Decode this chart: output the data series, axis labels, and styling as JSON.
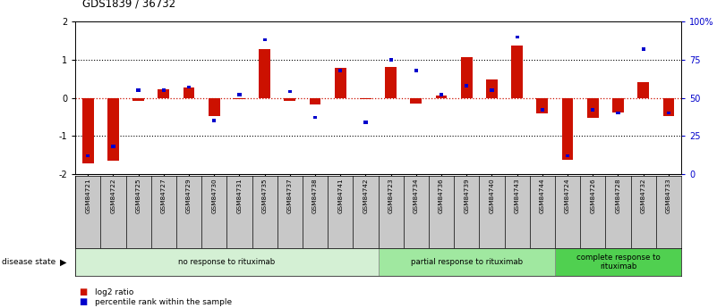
{
  "title": "GDS1839 / 36732",
  "samples": [
    "GSM84721",
    "GSM84722",
    "GSM84725",
    "GSM84727",
    "GSM84729",
    "GSM84730",
    "GSM84731",
    "GSM84735",
    "GSM84737",
    "GSM84738",
    "GSM84741",
    "GSM84742",
    "GSM84723",
    "GSM84734",
    "GSM84736",
    "GSM84739",
    "GSM84740",
    "GSM84743",
    "GSM84744",
    "GSM84724",
    "GSM84726",
    "GSM84728",
    "GSM84732",
    "GSM84733"
  ],
  "log2_ratio": [
    -1.72,
    -1.65,
    -0.08,
    0.22,
    0.28,
    -0.48,
    -0.04,
    1.28,
    -0.08,
    -0.18,
    0.78,
    -0.04,
    0.82,
    -0.14,
    0.06,
    1.06,
    0.48,
    1.38,
    -0.42,
    -1.62,
    -0.52,
    -0.38,
    0.42,
    -0.48
  ],
  "percentile_rank": [
    12,
    18,
    55,
    55,
    57,
    35,
    52,
    88,
    54,
    37,
    68,
    34,
    75,
    68,
    52,
    58,
    55,
    90,
    42,
    12,
    42,
    40,
    82,
    40
  ],
  "groups": [
    {
      "label": "no response to rituximab",
      "start": 0,
      "end": 12,
      "color": "#d4f0d4"
    },
    {
      "label": "partial response to rituximab",
      "start": 12,
      "end": 19,
      "color": "#a0e8a0"
    },
    {
      "label": "complete response to\nrituximab",
      "start": 19,
      "end": 24,
      "color": "#50d050"
    }
  ],
  "ylim": [
    -2,
    2
  ],
  "bar_color": "#cc1100",
  "dot_color": "#0000cc",
  "background_color": "#ffffff",
  "legend_log2": "log2 ratio",
  "legend_pct": "percentile rank within the sample"
}
